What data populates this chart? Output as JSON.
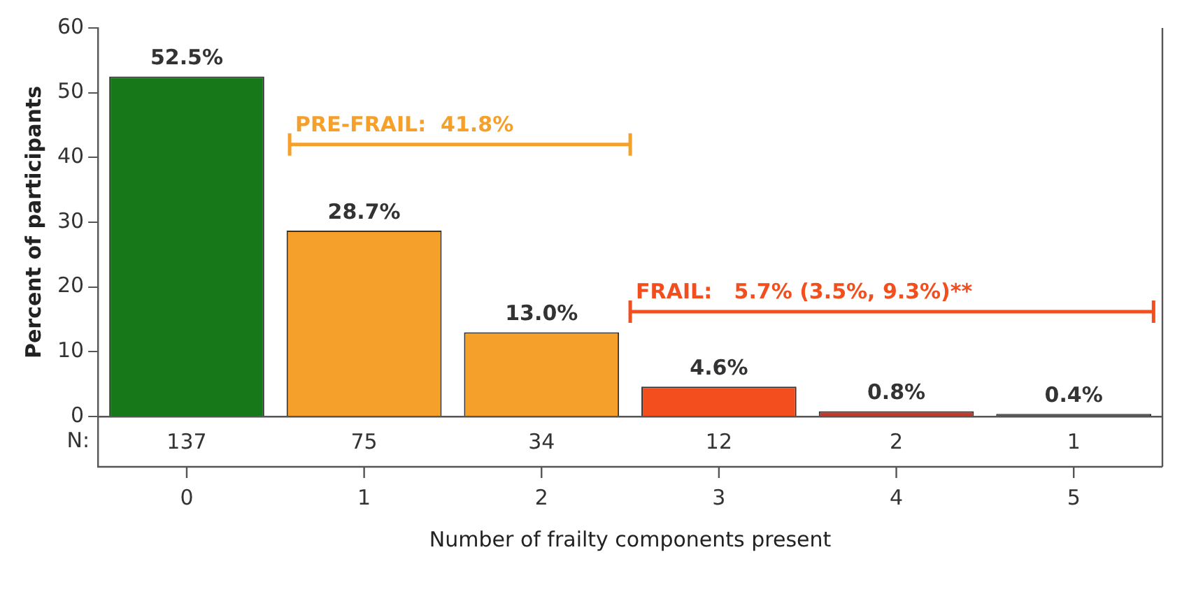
{
  "chart_data": {
    "type": "bar",
    "xlabel": "Number of frailty components present",
    "ylabel": "Percent of participants",
    "categories": [
      "0",
      "1",
      "2",
      "3",
      "4",
      "5"
    ],
    "values": [
      52.5,
      28.7,
      13.0,
      4.6,
      0.8,
      0.4
    ],
    "colors": [
      "#17781a",
      "#f5a02a",
      "#f5a02a",
      "#f24e1e",
      "#c0392b",
      "#555555"
    ],
    "value_labels": [
      "52.5%",
      "28.7%",
      "13.0%",
      "4.6%",
      "0.8%",
      "0.4%"
    ],
    "ylim": [
      0,
      60
    ],
    "yticks": [
      0,
      10,
      20,
      30,
      40,
      50,
      60
    ],
    "grid": false,
    "legend": false,
    "annotations": [
      "PRE-FRAIL:  41.8%",
      "FRAIL:   5.7% (3.5%, 9.3%)**",
      "N:",
      "137",
      "75",
      "34",
      "12",
      "2",
      "1"
    ]
  }
}
